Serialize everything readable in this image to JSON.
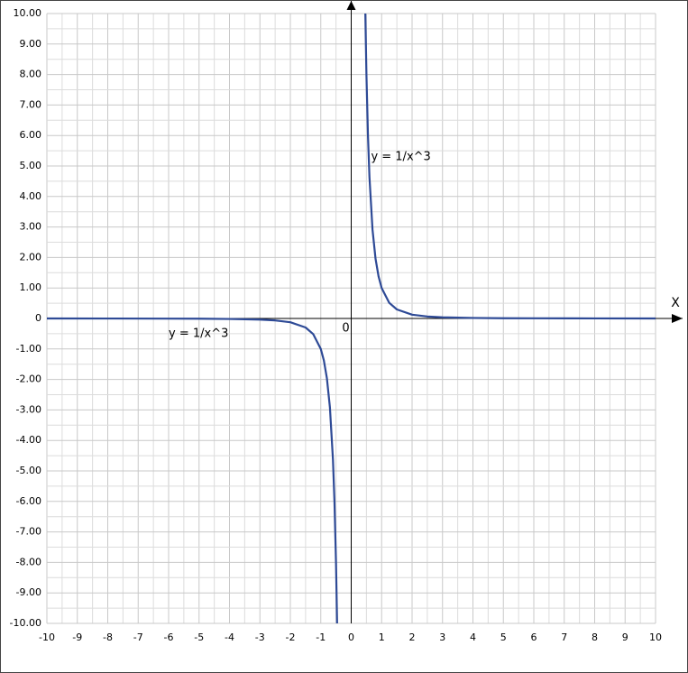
{
  "chart_data": {
    "type": "line",
    "x": [
      -10,
      -8,
      -6,
      -5,
      -4,
      -3,
      -2.5,
      -2,
      -1.5,
      -1.25,
      -1,
      -0.9,
      -0.8,
      -0.7,
      -0.6,
      -0.55,
      -0.5,
      -0.464,
      null,
      0.464,
      0.5,
      0.55,
      0.6,
      0.7,
      0.8,
      0.9,
      1,
      1.25,
      1.5,
      2,
      2.5,
      3,
      4,
      5,
      6,
      8,
      10
    ],
    "values": [
      -0.001,
      -0.002,
      -0.005,
      -0.008,
      -0.016,
      -0.037,
      -0.064,
      -0.125,
      -0.296,
      -0.512,
      -1,
      -1.372,
      -1.953,
      -2.915,
      -4.63,
      -6.011,
      -8,
      -10,
      null,
      10,
      8,
      6.011,
      4.63,
      2.915,
      1.953,
      1.372,
      1,
      0.512,
      0.296,
      0.125,
      0.064,
      0.037,
      0.016,
      0.008,
      0.005,
      0.002,
      0.001
    ],
    "color": "#2e4a96",
    "xlim": [
      -10,
      10
    ],
    "ylim": [
      -10,
      10
    ],
    "xticks": [
      -10,
      -9,
      -8,
      -7,
      -6,
      -5,
      -4,
      -3,
      -2,
      -1,
      0,
      1,
      2,
      3,
      4,
      5,
      6,
      7,
      8,
      9,
      10
    ],
    "yticks": [
      {
        "value": -10,
        "label": "-10.00"
      },
      {
        "value": -9,
        "label": "-9.00"
      },
      {
        "value": -8,
        "label": "-8.00"
      },
      {
        "value": -7,
        "label": "-7.00"
      },
      {
        "value": -6,
        "label": "-6.00"
      },
      {
        "value": -5,
        "label": "-5.00"
      },
      {
        "value": -4,
        "label": "-4.00"
      },
      {
        "value": -3,
        "label": "-3.00"
      },
      {
        "value": -2,
        "label": "-2.00"
      },
      {
        "value": -1,
        "label": "-1.00"
      },
      0,
      {
        "value": 1,
        "label": "1.00"
      },
      {
        "value": 2,
        "label": "2.00"
      },
      {
        "value": 3,
        "label": "3.00"
      },
      {
        "value": 4,
        "label": "4.00"
      },
      {
        "value": 5,
        "label": "5.00"
      },
      {
        "value": 6,
        "label": "6.00"
      },
      {
        "value": 7,
        "label": "7.00"
      },
      {
        "value": 8,
        "label": "8.00"
      },
      {
        "value": 9,
        "label": "9.00"
      },
      {
        "value": 10,
        "label": "10.00"
      }
    ],
    "grid": true,
    "xlabel": "X",
    "origin_label": "0",
    "annotations": [
      {
        "text": "y = 1/x^3",
        "x": 0.65,
        "y": 5.3
      },
      {
        "text": "y = 1/x^3",
        "x": -6,
        "y": -0.5
      }
    ]
  }
}
